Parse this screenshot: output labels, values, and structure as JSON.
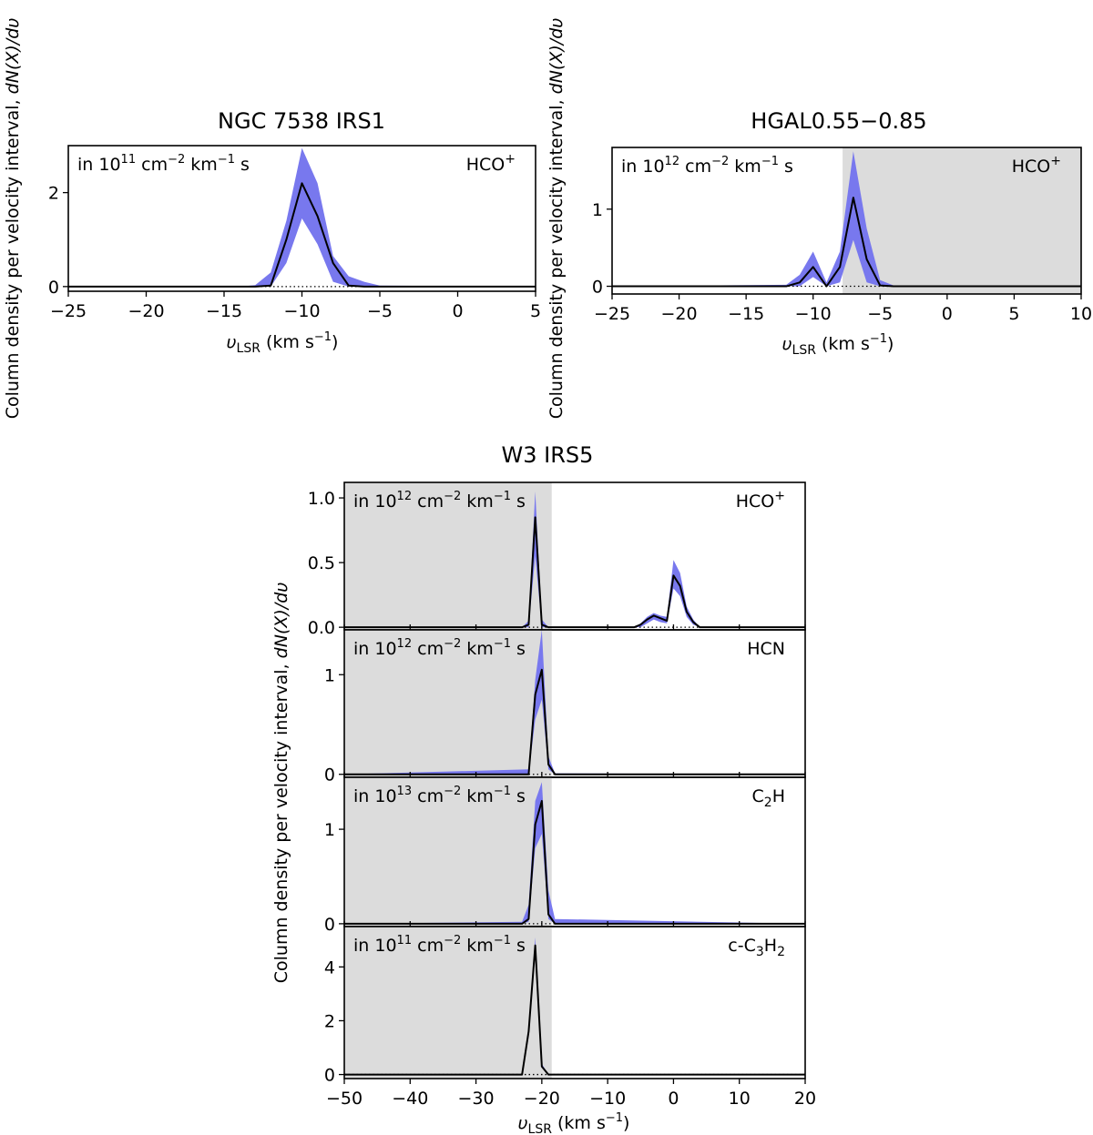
{
  "chart_data": [
    {
      "id": "ngc",
      "type": "line",
      "title": "NGC 7538 IRS1",
      "ylabel": "Column density per velocity interval, dN(X)/dυ",
      "xlabel": "υ_LSR (km s^-1)",
      "xlim": [
        -25,
        5
      ],
      "xticks": [
        -25,
        -20,
        -15,
        -10,
        -5,
        0,
        5
      ],
      "xtick_labels": [
        "−25",
        "−20",
        "−15",
        "−10",
        "−5",
        "0",
        "5"
      ],
      "panels": [
        {
          "species": "HCO+",
          "species_label": "HCO",
          "species_sup": "+",
          "unit_prefix": "in 10",
          "unit_exp": "11",
          "unit_rest": " cm",
          "unit_exp2": "−2",
          "unit_mid": " km",
          "unit_exp3": "−1",
          "unit_end": " s",
          "ylim": [
            -0.1,
            3.0
          ],
          "yticks": [
            0,
            2
          ],
          "ytick_labels": [
            "0",
            "2"
          ],
          "shaded": [],
          "x": [
            -25,
            -14,
            -13,
            -12,
            -11,
            -10,
            -9,
            -8,
            -7,
            -6,
            -5,
            5
          ],
          "y": [
            0,
            0,
            0,
            0.02,
            1.0,
            2.2,
            1.5,
            0.5,
            0.02,
            0,
            0,
            0
          ],
          "y_lo": [
            0,
            0,
            0,
            0,
            0.5,
            1.45,
            0.9,
            0.1,
            0,
            0,
            0,
            0
          ],
          "y_hi": [
            0,
            0,
            0.03,
            0.3,
            1.4,
            2.95,
            2.2,
            0.65,
            0.22,
            0.1,
            0.02,
            0
          ]
        }
      ]
    },
    {
      "id": "hgal",
      "type": "line",
      "title": "HGAL0.55−0.85",
      "ylabel": "Column density per velocity interval, dN(X)/dυ",
      "xlabel": "υ_LSR (km s^-1)",
      "xlim": [
        -25,
        10
      ],
      "xticks": [
        -25,
        -20,
        -15,
        -10,
        -5,
        0,
        5,
        10
      ],
      "xtick_labels": [
        "−25",
        "−20",
        "−15",
        "−10",
        "−5",
        "0",
        "5",
        "10"
      ],
      "panels": [
        {
          "species": "HCO+",
          "species_label": "HCO",
          "species_sup": "+",
          "unit_prefix": "in 10",
          "unit_exp": "12",
          "unit_rest": " cm",
          "unit_exp2": "−2",
          "unit_mid": " km",
          "unit_exp3": "−1",
          "unit_end": " s",
          "ylim": [
            -0.1,
            1.8
          ],
          "yticks": [
            0,
            1
          ],
          "ytick_labels": [
            "0",
            "1"
          ],
          "shaded": [
            [
              -7.8,
              10
            ]
          ],
          "x": [
            -25,
            -12,
            -11,
            -10,
            -9,
            -8,
            -7,
            -6,
            -5,
            -4,
            10
          ],
          "y": [
            0,
            0,
            0.05,
            0.25,
            0,
            0.25,
            1.15,
            0.35,
            0.01,
            0,
            0
          ],
          "y_lo": [
            0,
            0,
            0,
            0.12,
            0,
            0.05,
            0.6,
            0.05,
            0,
            0,
            0
          ],
          "y_hi": [
            0,
            0.02,
            0.15,
            0.45,
            0.05,
            0.45,
            1.75,
            0.75,
            0.08,
            0.01,
            0
          ]
        }
      ]
    },
    {
      "id": "w3",
      "type": "line",
      "title": "W3 IRS5",
      "ylabel": "Column density per velocity interval, dN(X)/dυ",
      "xlabel": "υ_LSR (km s^-1)",
      "xlim": [
        -50,
        20
      ],
      "xticks": [
        -50,
        -40,
        -30,
        -20,
        -10,
        0,
        10,
        20
      ],
      "xtick_labels": [
        "−50",
        "−40",
        "−30",
        "−20",
        "−10",
        "0",
        "10",
        "20"
      ],
      "panels": [
        {
          "species": "HCO+",
          "species_label": "HCO",
          "species_sup": "+",
          "unit_prefix": "in 10",
          "unit_exp": "12",
          "unit_rest": " cm",
          "unit_exp2": "−2",
          "unit_mid": " km",
          "unit_exp3": "−1",
          "unit_end": " s",
          "ylim": [
            -0.02,
            1.12
          ],
          "yticks": [
            0.0,
            0.5,
            1.0
          ],
          "ytick_labels": [
            "0.0",
            "0.5",
            "1.0"
          ],
          "shaded": [
            [
              -50,
              -18.5
            ]
          ],
          "x": [
            -50,
            -23,
            -22,
            -21,
            -20,
            -19,
            -6,
            -5,
            -4,
            -3,
            -2,
            -1,
            0,
            1,
            2,
            3,
            4,
            20
          ],
          "y": [
            0,
            0,
            0.02,
            0.85,
            0.02,
            0,
            0,
            0.02,
            0.06,
            0.09,
            0.07,
            0.05,
            0.4,
            0.32,
            0.12,
            0.04,
            0,
            0
          ],
          "y_lo": [
            0,
            0,
            0,
            0.55,
            0,
            0,
            0,
            0,
            0.03,
            0.06,
            0.04,
            0.03,
            0.3,
            0.24,
            0.08,
            0.02,
            0,
            0
          ],
          "y_hi": [
            0,
            0,
            0.05,
            1.05,
            0.06,
            0,
            0,
            0.03,
            0.08,
            0.11,
            0.09,
            0.08,
            0.52,
            0.42,
            0.16,
            0.06,
            0,
            0
          ]
        },
        {
          "species": "HCN",
          "species_label": "HCN",
          "species_sup": "",
          "unit_prefix": "in 10",
          "unit_exp": "12",
          "unit_rest": " cm",
          "unit_exp2": "−2",
          "unit_mid": " km",
          "unit_exp3": "−1",
          "unit_end": " s",
          "ylim": [
            -0.03,
            1.45
          ],
          "yticks": [
            0,
            1
          ],
          "ytick_labels": [
            "0",
            "1"
          ],
          "shaded": [
            [
              -50,
              -18.5
            ]
          ],
          "x": [
            -50,
            -22,
            -21,
            -20,
            -19,
            -18,
            20
          ],
          "y": [
            0,
            0,
            0.8,
            1.05,
            0.1,
            0,
            0
          ],
          "y_lo": [
            0,
            0,
            0.55,
            0.75,
            0.05,
            0,
            0
          ],
          "y_hi": [
            0,
            0.05,
            0.95,
            1.45,
            0.18,
            0.01,
            0
          ]
        },
        {
          "species": "C2H",
          "species_label": "C",
          "species_sub": "2",
          "species_tail": "H",
          "unit_prefix": "in 10",
          "unit_exp": "13",
          "unit_rest": " cm",
          "unit_exp2": "−2",
          "unit_mid": " km",
          "unit_exp3": "−1",
          "unit_end": " s",
          "ylim": [
            -0.03,
            1.55
          ],
          "yticks": [
            0,
            1
          ],
          "ytick_labels": [
            "0",
            "1"
          ],
          "shaded": [
            [
              -50,
              -18.5
            ]
          ],
          "x": [
            -50,
            -23,
            -22,
            -21,
            -20,
            -19,
            -18,
            20
          ],
          "y": [
            0,
            0,
            0.05,
            1.05,
            1.3,
            0.1,
            0,
            0
          ],
          "y_lo": [
            0,
            0,
            0.02,
            0.8,
            0.95,
            0.05,
            0,
            0
          ],
          "y_hi": [
            0,
            0.02,
            0.2,
            1.3,
            1.5,
            0.35,
            0.05,
            0
          ]
        },
        {
          "species": "c-C3H2",
          "species_label": "c-C",
          "species_sub": "3",
          "species_tail": "H",
          "species_sub2": "2",
          "unit_prefix": "in 10",
          "unit_exp": "11",
          "unit_rest": " cm",
          "unit_exp2": "−2",
          "unit_mid": " km",
          "unit_exp3": "−1",
          "unit_end": " s",
          "ylim": [
            -0.15,
            5.5
          ],
          "yticks": [
            0,
            2,
            4
          ],
          "ytick_labels": [
            "0",
            "2",
            "4"
          ],
          "shaded": [
            [
              -50,
              -18.5
            ]
          ],
          "x": [
            -50,
            -23,
            -22,
            -21,
            -20,
            -19,
            20
          ],
          "y": [
            0,
            0,
            1.6,
            4.8,
            0.3,
            0,
            0
          ],
          "y_lo": [
            0,
            0,
            1.4,
            4.5,
            0.25,
            0,
            0
          ],
          "y_hi": [
            0,
            0.02,
            1.8,
            5.1,
            0.4,
            0,
            0
          ]
        }
      ]
    }
  ],
  "colors": {
    "band": "#7878ee",
    "line": "#000000",
    "shade": "#dcdcdc"
  }
}
